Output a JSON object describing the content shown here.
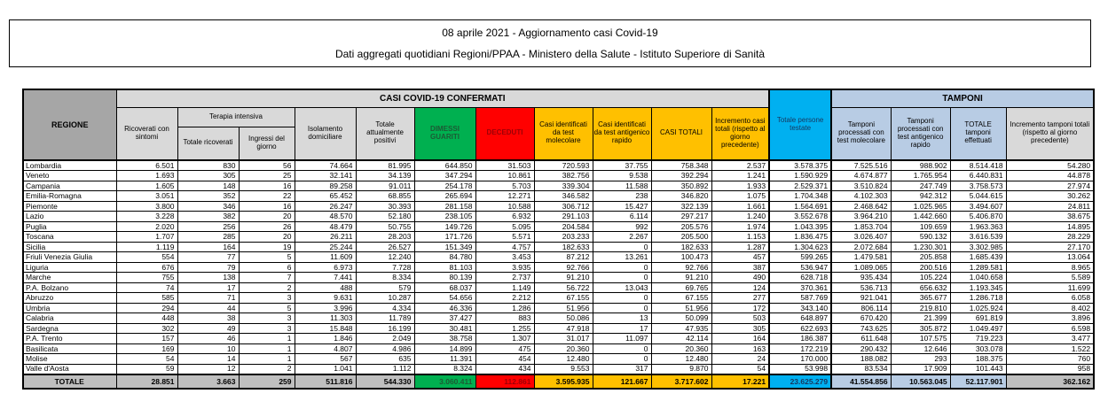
{
  "header": {
    "line1": "08 aprile 2021 - Aggiornamento casi Covid-19",
    "line2": "Dati aggregati quotidiani Regioni/PPAA - Ministero della Salute - Istituto Superiore di Sanità"
  },
  "colors": {
    "green": "#00B050",
    "red": "#FF0000",
    "yellow": "#FFC000",
    "cyan": "#00B0F0",
    "light_blue": "#B8CCE4",
    "header_gray": "#A6A6A6",
    "band_gray": "#D9D9D9",
    "total_gray": "#BFBFBF"
  },
  "table": {
    "group_headers": {
      "casi": "CASI COVID-19 CONFERMATI",
      "tamponi": "TAMPONI",
      "terapia": "Terapia intensiva"
    },
    "columns": {
      "regione": "REGIONE",
      "ricoverati": "Ricoverati con sintomi",
      "totale_ricoverati": "Totale ricoverati",
      "ingressi": "Ingressi del giorno",
      "isolamento": "Isolamento domiciliare",
      "positivi": "Totale attualmente positivi",
      "dimessi": "DIMESSI GUARITI",
      "deceduti": "DECEDUTI",
      "casi_molecolare": "Casi identificati da test molecolare",
      "casi_antigenico": "Casi identificati da test antigenico rapido",
      "casi_totali": "CASI TOTALI",
      "incremento_casi": "Incremento casi totali (rispetto al giorno precedente)",
      "persone_testate": "Totale persone testate",
      "tamponi_molecolare": "Tamponi processati con test molecolare",
      "tamponi_antigenico": "Tamponi processati con test antigenico rapido",
      "totale_tamponi": "TOTALE tamponi effettuati",
      "incremento_tamponi": "Incremento tamponi totali (rispetto al giorno precedente)"
    },
    "rows": [
      {
        "regione": "Lombardia",
        "values": [
          "6.501",
          "830",
          "56",
          "74.664",
          "81.995",
          "644.850",
          "31.503",
          "720.593",
          "37.755",
          "758.348",
          "2.537",
          "3.578.375",
          "7.525.516",
          "988.902",
          "8.514.418",
          "54.280"
        ]
      },
      {
        "regione": "Veneto",
        "values": [
          "1.693",
          "305",
          "25",
          "32.141",
          "34.139",
          "347.294",
          "10.861",
          "382.756",
          "9.538",
          "392.294",
          "1.241",
          "1.590.929",
          "4.674.877",
          "1.765.954",
          "6.440.831",
          "44.878"
        ]
      },
      {
        "regione": "Campania",
        "values": [
          "1.605",
          "148",
          "16",
          "89.258",
          "91.011",
          "254.178",
          "5.703",
          "339.304",
          "11.588",
          "350.892",
          "1.933",
          "2.529.371",
          "3.510.824",
          "247.749",
          "3.758.573",
          "27.974"
        ]
      },
      {
        "regione": "Emilia-Romagna",
        "values": [
          "3.051",
          "352",
          "22",
          "65.452",
          "68.855",
          "265.694",
          "12.271",
          "346.582",
          "238",
          "346.820",
          "1.075",
          "1.704.348",
          "4.102.303",
          "942.312",
          "5.044.615",
          "30.262"
        ]
      },
      {
        "regione": "Piemonte",
        "values": [
          "3.800",
          "346",
          "16",
          "26.247",
          "30.393",
          "281.158",
          "10.588",
          "306.712",
          "15.427",
          "322.139",
          "1.661",
          "1.564.691",
          "2.468.642",
          "1.025.965",
          "3.494.607",
          "24.811"
        ]
      },
      {
        "regione": "Lazio",
        "values": [
          "3.228",
          "382",
          "20",
          "48.570",
          "52.180",
          "238.105",
          "6.932",
          "291.103",
          "6.114",
          "297.217",
          "1.240",
          "3.552.678",
          "3.964.210",
          "1.442.660",
          "5.406.870",
          "38.675"
        ]
      },
      {
        "regione": "Puglia",
        "values": [
          "2.020",
          "256",
          "26",
          "48.479",
          "50.755",
          "149.726",
          "5.095",
          "204.584",
          "992",
          "205.576",
          "1.974",
          "1.043.395",
          "1.853.704",
          "109.659",
          "1.963.363",
          "14.895"
        ]
      },
      {
        "regione": "Toscana",
        "values": [
          "1.707",
          "285",
          "20",
          "26.211",
          "28.203",
          "171.726",
          "5.571",
          "203.233",
          "2.267",
          "205.500",
          "1.153",
          "1.836.475",
          "3.026.407",
          "590.132",
          "3.616.539",
          "28.229"
        ]
      },
      {
        "regione": "Sicilia",
        "values": [
          "1.119",
          "164",
          "19",
          "25.244",
          "26.527",
          "151.349",
          "4.757",
          "182.633",
          "0",
          "182.633",
          "1.287",
          "1.304.623",
          "2.072.684",
          "1.230.301",
          "3.302.985",
          "27.170"
        ]
      },
      {
        "regione": "Friuli Venezia Giulia",
        "values": [
          "554",
          "77",
          "5",
          "11.609",
          "12.240",
          "84.780",
          "3.453",
          "87.212",
          "13.261",
          "100.473",
          "457",
          "599.265",
          "1.479.581",
          "205.858",
          "1.685.439",
          "13.064"
        ]
      },
      {
        "regione": "Liguria",
        "values": [
          "676",
          "79",
          "6",
          "6.973",
          "7.728",
          "81.103",
          "3.935",
          "92.766",
          "0",
          "92.766",
          "387",
          "536.947",
          "1.089.065",
          "200.516",
          "1.289.581",
          "8.965"
        ]
      },
      {
        "regione": "Marche",
        "values": [
          "755",
          "138",
          "7",
          "7.441",
          "8.334",
          "80.139",
          "2.737",
          "91.210",
          "0",
          "91.210",
          "490",
          "628.718",
          "935.434",
          "105.224",
          "1.040.658",
          "5.589"
        ]
      },
      {
        "regione": "P.A. Bolzano",
        "values": [
          "74",
          "17",
          "2",
          "488",
          "579",
          "68.037",
          "1.149",
          "56.722",
          "13.043",
          "69.765",
          "124",
          "370.361",
          "536.713",
          "656.632",
          "1.193.345",
          "11.699"
        ]
      },
      {
        "regione": "Abruzzo",
        "values": [
          "585",
          "71",
          "3",
          "9.631",
          "10.287",
          "54.656",
          "2.212",
          "67.155",
          "0",
          "67.155",
          "277",
          "587.769",
          "921.041",
          "365.677",
          "1.286.718",
          "6.058"
        ]
      },
      {
        "regione": "Umbria",
        "values": [
          "294",
          "44",
          "5",
          "3.996",
          "4.334",
          "46.336",
          "1.286",
          "51.956",
          "0",
          "51.956",
          "172",
          "343.140",
          "806.114",
          "219.810",
          "1.025.924",
          "8.402"
        ]
      },
      {
        "regione": "Calabria",
        "values": [
          "448",
          "38",
          "3",
          "11.303",
          "11.789",
          "37.427",
          "883",
          "50.086",
          "13",
          "50.099",
          "503",
          "648.897",
          "670.420",
          "21.399",
          "691.819",
          "3.896"
        ]
      },
      {
        "regione": "Sardegna",
        "values": [
          "302",
          "49",
          "3",
          "15.848",
          "16.199",
          "30.481",
          "1.255",
          "47.918",
          "17",
          "47.935",
          "305",
          "622.693",
          "743.625",
          "305.872",
          "1.049.497",
          "6.598"
        ]
      },
      {
        "regione": "P.A. Trento",
        "values": [
          "157",
          "46",
          "1",
          "1.846",
          "2.049",
          "38.758",
          "1.307",
          "31.017",
          "11.097",
          "42.114",
          "164",
          "186.387",
          "611.648",
          "107.575",
          "719.223",
          "3.477"
        ]
      },
      {
        "regione": "Basilicata",
        "values": [
          "169",
          "10",
          "1",
          "4.807",
          "4.986",
          "14.899",
          "475",
          "20.360",
          "0",
          "20.360",
          "163",
          "172.219",
          "290.432",
          "12.646",
          "303.078",
          "1.522"
        ]
      },
      {
        "regione": "Molise",
        "values": [
          "54",
          "14",
          "1",
          "567",
          "635",
          "11.391",
          "454",
          "12.480",
          "0",
          "12.480",
          "24",
          "170.000",
          "188.082",
          "293",
          "188.375",
          "760"
        ]
      },
      {
        "regione": "Valle d'Aosta",
        "values": [
          "59",
          "12",
          "2",
          "1.041",
          "1.112",
          "8.324",
          "434",
          "9.553",
          "317",
          "9.870",
          "54",
          "53.998",
          "83.534",
          "17.909",
          "101.443",
          "958"
        ]
      }
    ],
    "total": {
      "label": "TOTALE",
      "values": [
        "28.851",
        "3.663",
        "259",
        "511.816",
        "544.330",
        "3.060.411",
        "112.861",
        "3.595.935",
        "121.667",
        "3.717.602",
        "17.221",
        "23.625.279",
        "41.554.856",
        "10.563.045",
        "52.117.901",
        "362.162"
      ]
    }
  }
}
